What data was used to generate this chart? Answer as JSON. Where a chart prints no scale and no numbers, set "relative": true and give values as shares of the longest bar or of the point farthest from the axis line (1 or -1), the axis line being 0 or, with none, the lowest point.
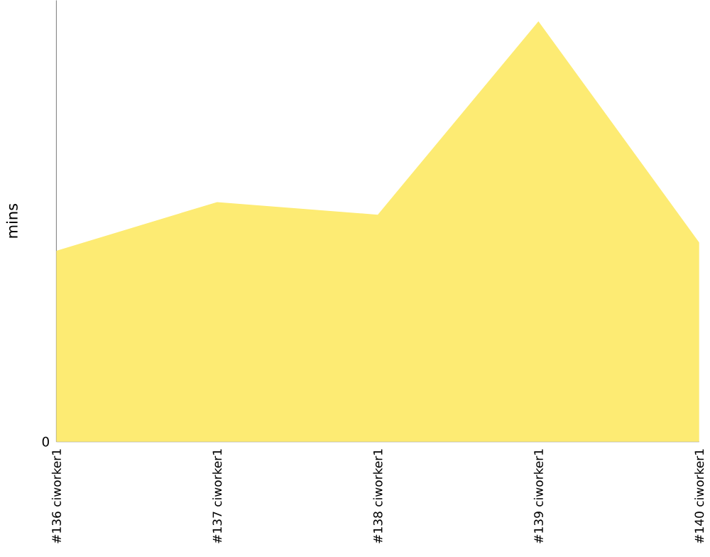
{
  "chart_data": {
    "type": "area",
    "ylabel": "mins",
    "relative": true,
    "categories": [
      "#136 ciworker1",
      "#137 ciworker1",
      "#138 ciworker1",
      "#139 ciworker1",
      "#140 ciworker1"
    ],
    "values": [
      0.454,
      0.57,
      0.54,
      1,
      0.474
    ],
    "color": "#fdeb73",
    "annotations": [
      "0"
    ]
  }
}
